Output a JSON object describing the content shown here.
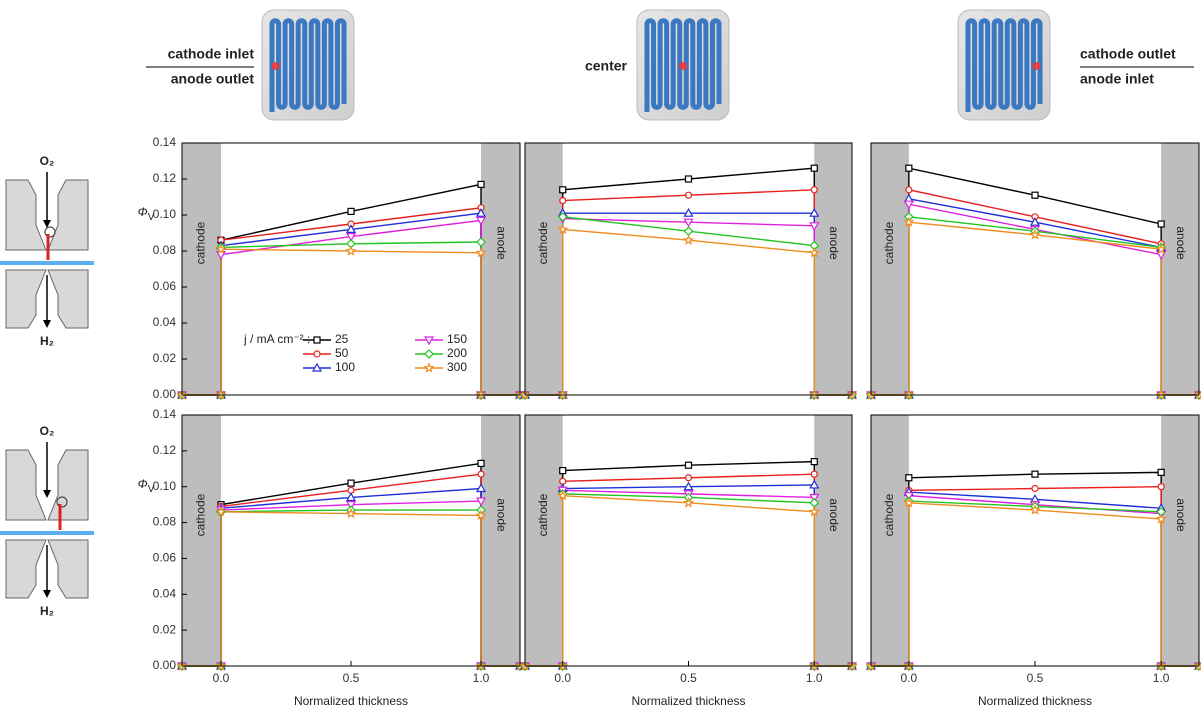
{
  "header": {
    "panels": [
      {
        "lines": [
          "cathode inlet",
          "anode outlet"
        ]
      },
      {
        "lines": [
          "center"
        ]
      },
      {
        "lines": [
          "cathode outlet",
          "anode inlet"
        ]
      }
    ]
  },
  "diagrams": [
    {
      "top": "O₂",
      "bottom": "H₂"
    },
    {
      "top": "O₂",
      "bottom": "H₂"
    }
  ],
  "chart_data": [
    {
      "type": "line",
      "ylabel": {
        "text": "Φ",
        "subscript": "V"
      },
      "xlim": [
        -0.15,
        1.15
      ],
      "ylim": [
        0,
        0.14
      ],
      "yticks": [
        {
          "value": 0,
          "label": "0.00"
        },
        {
          "value": 0.02,
          "label": "0.02"
        },
        {
          "value": 0.04,
          "label": "0.04"
        },
        {
          "value": 0.06,
          "label": "0.06"
        },
        {
          "value": 0.08,
          "label": "0.08"
        },
        {
          "value": 0.1,
          "label": "0.10"
        },
        {
          "value": 0.12,
          "label": "0.12"
        },
        {
          "value": 0.14,
          "label": "0.14"
        }
      ],
      "region_labels": {
        "left": "cathode",
        "right": "anode"
      },
      "legend": "lower left",
      "legend_title": "j / mA cm⁻² :",
      "x": [
        -0.15,
        0,
        0,
        0.5,
        1,
        1,
        1.15
      ],
      "series": [
        {
          "name": "25",
          "color": "#000000",
          "marker": "square",
          "values": [
            0,
            0,
            0.086,
            0.102,
            0.117,
            0,
            0
          ]
        },
        {
          "name": "50",
          "color": "#e8201c",
          "marker": "circle",
          "values": [
            0,
            0,
            0.086,
            0.095,
            0.104,
            0,
            0
          ]
        },
        {
          "name": "100",
          "color": "#1f2fd8",
          "marker": "triangle-up",
          "values": [
            0,
            0,
            0.083,
            0.092,
            0.101,
            0,
            0
          ]
        },
        {
          "name": "150",
          "color": "#e020e0",
          "marker": "triangle-down",
          "values": [
            0,
            0,
            0.078,
            0.088,
            0.097,
            0,
            0
          ]
        },
        {
          "name": "200",
          "color": "#22c422",
          "marker": "diamond",
          "values": [
            0,
            0,
            0.082,
            0.084,
            0.085,
            0,
            0
          ]
        },
        {
          "name": "300",
          "color": "#f08c20",
          "marker": "star",
          "values": [
            0,
            0,
            0.081,
            0.08,
            0.079,
            0,
            0
          ]
        }
      ]
    },
    {
      "type": "line",
      "xlim": [
        -0.15,
        1.15
      ],
      "ylim": [
        0,
        0.14
      ],
      "region_labels": {
        "left": "cathode",
        "right": "anode"
      },
      "x": [
        -0.15,
        0,
        0,
        0.5,
        1,
        1,
        1.15
      ],
      "series": [
        {
          "color": "#000000",
          "marker": "square",
          "values": [
            0,
            0,
            0.114,
            0.12,
            0.126,
            0,
            0
          ]
        },
        {
          "color": "#e8201c",
          "marker": "circle",
          "values": [
            0,
            0,
            0.108,
            0.111,
            0.114,
            0,
            0
          ]
        },
        {
          "color": "#1f2fd8",
          "marker": "triangle-up",
          "values": [
            0,
            0,
            0.101,
            0.101,
            0.101,
            0,
            0
          ]
        },
        {
          "color": "#e020e0",
          "marker": "triangle-down",
          "values": [
            0,
            0,
            0.098,
            0.096,
            0.094,
            0,
            0
          ]
        },
        {
          "color": "#22c422",
          "marker": "diamond",
          "values": [
            0,
            0,
            0.099,
            0.091,
            0.083,
            0,
            0
          ]
        },
        {
          "color": "#f08c20",
          "marker": "star",
          "values": [
            0,
            0,
            0.092,
            0.086,
            0.079,
            0,
            0
          ]
        }
      ]
    },
    {
      "type": "line",
      "xlim": [
        -0.15,
        1.15
      ],
      "ylim": [
        0,
        0.14
      ],
      "region_labels": {
        "left": "cathode",
        "right": "anode"
      },
      "x": [
        -0.15,
        0,
        0,
        0.5,
        1,
        1,
        1.15
      ],
      "series": [
        {
          "color": "#000000",
          "marker": "square",
          "values": [
            0,
            0,
            0.126,
            0.111,
            0.095,
            0,
            0
          ]
        },
        {
          "color": "#e8201c",
          "marker": "circle",
          "values": [
            0,
            0,
            0.114,
            0.099,
            0.084,
            0,
            0
          ]
        },
        {
          "color": "#1f2fd8",
          "marker": "triangle-up",
          "values": [
            0,
            0,
            0.109,
            0.096,
            0.082,
            0,
            0
          ]
        },
        {
          "color": "#e020e0",
          "marker": "triangle-down",
          "values": [
            0,
            0,
            0.106,
            0.092,
            0.078,
            0,
            0
          ]
        },
        {
          "color": "#22c422",
          "marker": "diamond",
          "values": [
            0,
            0,
            0.099,
            0.091,
            0.082,
            0,
            0
          ]
        },
        {
          "color": "#f08c20",
          "marker": "star",
          "values": [
            0,
            0,
            0.096,
            0.089,
            0.081,
            0,
            0
          ]
        }
      ]
    },
    {
      "type": "line",
      "ylabel": {
        "text": "Φ",
        "subscript": "V"
      },
      "xlabel": "Normalized thickness",
      "xlim": [
        -0.15,
        1.15
      ],
      "ylim": [
        0,
        0.14
      ],
      "xticks": [
        {
          "value": 0,
          "label": "0.0"
        },
        {
          "value": 0.5,
          "label": "0.5"
        },
        {
          "value": 1,
          "label": "1.0"
        }
      ],
      "yticks": [
        {
          "value": 0,
          "label": "0.00"
        },
        {
          "value": 0.02,
          "label": "0.02"
        },
        {
          "value": 0.04,
          "label": "0.04"
        },
        {
          "value": 0.06,
          "label": "0.06"
        },
        {
          "value": 0.08,
          "label": "0.08"
        },
        {
          "value": 0.1,
          "label": "0.10"
        },
        {
          "value": 0.12,
          "label": "0.12"
        },
        {
          "value": 0.14,
          "label": "0.14"
        }
      ],
      "region_labels": {
        "left": "cathode",
        "right": "anode"
      },
      "x": [
        -0.15,
        0,
        0,
        0.5,
        1,
        1,
        1.15
      ],
      "series": [
        {
          "color": "#000000",
          "marker": "square",
          "values": [
            0,
            0,
            0.09,
            0.102,
            0.113,
            0,
            0
          ]
        },
        {
          "color": "#e8201c",
          "marker": "circle",
          "values": [
            0,
            0,
            0.089,
            0.098,
            0.107,
            0,
            0
          ]
        },
        {
          "color": "#1f2fd8",
          "marker": "triangle-up",
          "values": [
            0,
            0,
            0.088,
            0.094,
            0.099,
            0,
            0
          ]
        },
        {
          "color": "#e020e0",
          "marker": "triangle-down",
          "values": [
            0,
            0,
            0.087,
            0.09,
            0.092,
            0,
            0
          ]
        },
        {
          "color": "#22c422",
          "marker": "diamond",
          "values": [
            0,
            0,
            0.086,
            0.087,
            0.087,
            0,
            0
          ]
        },
        {
          "color": "#f08c20",
          "marker": "star",
          "values": [
            0,
            0,
            0.086,
            0.085,
            0.084,
            0,
            0
          ]
        }
      ]
    },
    {
      "type": "line",
      "xlabel": "Normalized thickness",
      "xlim": [
        -0.15,
        1.15
      ],
      "ylim": [
        0,
        0.14
      ],
      "xticks": [
        {
          "value": 0,
          "label": "0.0"
        },
        {
          "value": 0.5,
          "label": "0.5"
        },
        {
          "value": 1,
          "label": "1.0"
        }
      ],
      "region_labels": {
        "left": "cathode",
        "right": "anode"
      },
      "x": [
        -0.15,
        0,
        0,
        0.5,
        1,
        1,
        1.15
      ],
      "series": [
        {
          "color": "#000000",
          "marker": "square",
          "values": [
            0,
            0,
            0.109,
            0.112,
            0.114,
            0,
            0
          ]
        },
        {
          "color": "#e8201c",
          "marker": "circle",
          "values": [
            0,
            0,
            0.103,
            0.105,
            0.107,
            0,
            0
          ]
        },
        {
          "color": "#1f2fd8",
          "marker": "triangle-up",
          "values": [
            0,
            0,
            0.099,
            0.1,
            0.101,
            0,
            0
          ]
        },
        {
          "color": "#e020e0",
          "marker": "triangle-down",
          "values": [
            0,
            0,
            0.098,
            0.096,
            0.094,
            0,
            0
          ]
        },
        {
          "color": "#22c422",
          "marker": "diamond",
          "values": [
            0,
            0,
            0.096,
            0.094,
            0.091,
            0,
            0
          ]
        },
        {
          "color": "#f08c20",
          "marker": "star",
          "values": [
            0,
            0,
            0.095,
            0.091,
            0.086,
            0,
            0
          ]
        }
      ]
    },
    {
      "type": "line",
      "xlabel": "Normalized thickness",
      "xlim": [
        -0.15,
        1.15
      ],
      "ylim": [
        0,
        0.14
      ],
      "xticks": [
        {
          "value": 0,
          "label": "0.0"
        },
        {
          "value": 0.5,
          "label": "0.5"
        },
        {
          "value": 1,
          "label": "1.0"
        }
      ],
      "region_labels": {
        "left": "cathode",
        "right": "anode"
      },
      "x": [
        -0.15,
        0,
        0,
        0.5,
        1,
        1,
        1.15
      ],
      "series": [
        {
          "color": "#000000",
          "marker": "square",
          "values": [
            0,
            0,
            0.105,
            0.107,
            0.108,
            0,
            0
          ]
        },
        {
          "color": "#e8201c",
          "marker": "circle",
          "values": [
            0,
            0,
            0.098,
            0.099,
            0.1,
            0,
            0
          ]
        },
        {
          "color": "#1f2fd8",
          "marker": "triangle-up",
          "values": [
            0,
            0,
            0.097,
            0.093,
            0.088,
            0,
            0
          ]
        },
        {
          "color": "#e020e0",
          "marker": "triangle-down",
          "values": [
            0,
            0,
            0.095,
            0.09,
            0.085,
            0,
            0
          ]
        },
        {
          "color": "#22c422",
          "marker": "diamond",
          "values": [
            0,
            0,
            0.092,
            0.089,
            0.086,
            0,
            0
          ]
        },
        {
          "color": "#f08c20",
          "marker": "star",
          "values": [
            0,
            0,
            0.091,
            0.087,
            0.082,
            0,
            0
          ]
        }
      ]
    }
  ]
}
